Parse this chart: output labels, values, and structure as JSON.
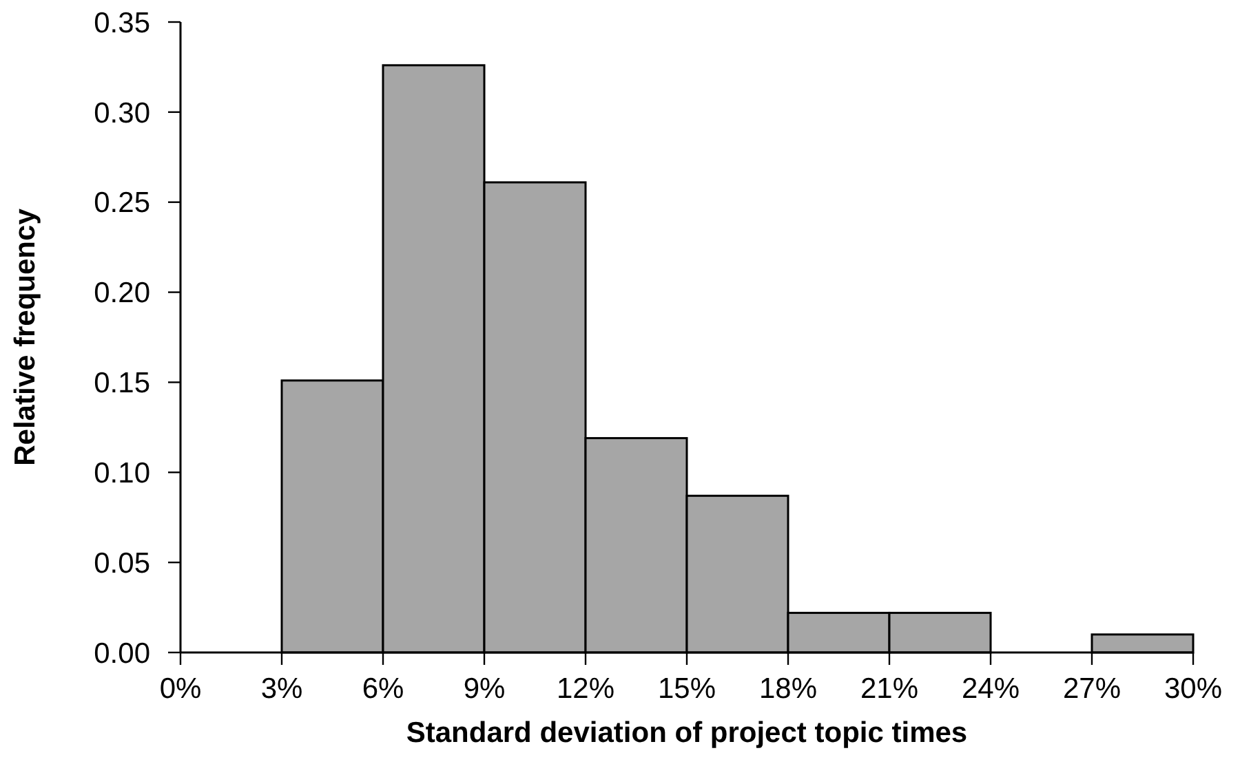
{
  "chart_data": {
    "type": "histogram",
    "xlabel": "Standard deviation of project topic times",
    "ylabel": "Relative frequency",
    "bins": [
      0,
      3,
      6,
      9,
      12,
      15,
      18,
      21,
      24,
      27,
      30
    ],
    "values": [
      0,
      0.151,
      0.326,
      0.261,
      0.119,
      0.087,
      0.022,
      0.022,
      0,
      0.01
    ],
    "color": "#a6a6a6",
    "xlim": [
      0,
      30
    ],
    "xticks": [
      {
        "value": 0,
        "label": "0%"
      },
      {
        "value": 3,
        "label": "3%"
      },
      {
        "value": 6,
        "label": "6%"
      },
      {
        "value": 9,
        "label": "9%"
      },
      {
        "value": 12,
        "label": "12%"
      },
      {
        "value": 15,
        "label": "15%"
      },
      {
        "value": 18,
        "label": "18%"
      },
      {
        "value": 21,
        "label": "21%"
      },
      {
        "value": 24,
        "label": "24%"
      },
      {
        "value": 27,
        "label": "27%"
      },
      {
        "value": 30,
        "label": "30%"
      }
    ],
    "ylim": [
      0,
      0.35
    ],
    "yticks": [
      {
        "value": 0,
        "label": "0.00"
      },
      {
        "value": 0.05,
        "label": "0.05"
      },
      {
        "value": 0.1,
        "label": "0.10"
      },
      {
        "value": 0.15,
        "label": "0.15"
      },
      {
        "value": 0.2,
        "label": "0.20"
      },
      {
        "value": 0.25,
        "label": "0.25"
      },
      {
        "value": 0.3,
        "label": "0.30"
      },
      {
        "value": 0.35,
        "label": "0.35"
      }
    ],
    "grid": false
  }
}
